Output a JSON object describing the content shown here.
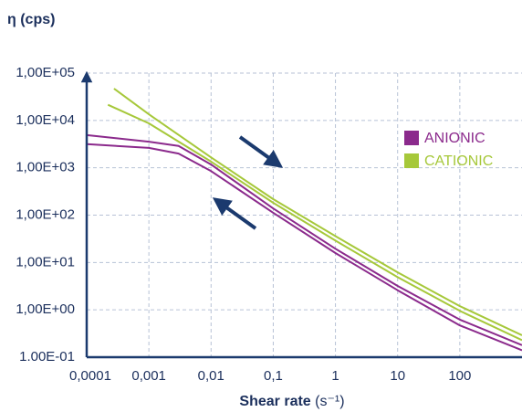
{
  "chart_data": {
    "type": "line",
    "ylabel": "η (cps)",
    "xlabel": "Shear rate",
    "xlabel_unit": "(s⁻¹)",
    "log_x": true,
    "log_y": true,
    "grid": true,
    "legend": "upper right",
    "xlim": [
      0.0001,
      1000
    ],
    "ylim": [
      0.1,
      100000
    ],
    "xticks": [
      {
        "value": 0.0001,
        "label": "0,0001"
      },
      {
        "value": 0.001,
        "label": "0,001"
      },
      {
        "value": 0.01,
        "label": "0,01"
      },
      {
        "value": 0.1,
        "label": "0,1"
      },
      1,
      10,
      100
    ],
    "yticks": [
      {
        "value": 0.1,
        "label": "1.00E-01"
      },
      {
        "value": 1,
        "label": "1,00E+00"
      },
      {
        "value": 10,
        "label": "1,00E+01"
      },
      {
        "value": 100,
        "label": "1,00E+02"
      },
      {
        "value": 1000,
        "label": "1,00E+03"
      },
      {
        "value": 10000,
        "label": "1,00E+04"
      },
      {
        "value": 100000,
        "label": "1,00E+05"
      }
    ],
    "series": [
      {
        "name": "ANIONIC",
        "color": "#8b2a8c",
        "lines": [
          {
            "x": [
              0.0001,
              0.001,
              0.003,
              0.01,
              0.1,
              1,
              10,
              100,
              1000
            ],
            "values": [
              4900,
              3550,
              2900,
              1170,
              138,
              19.5,
              3.2,
              0.62,
              0.18
            ]
          },
          {
            "x": [
              0.0001,
              0.001,
              0.003,
              0.01,
              0.1,
              1,
              10,
              100,
              1000
            ],
            "values": [
              3160,
              2630,
              2000,
              850,
              112,
              15.8,
              2.6,
              0.47,
              0.14
            ]
          }
        ]
      },
      {
        "name": "CATIONIC",
        "color": "#a6c83a",
        "lines": [
          {
            "x": [
              0.000275,
              0.001,
              0.01,
              0.1,
              1,
              10,
              100,
              1000
            ],
            "values": [
              47000,
              13500,
              1660,
              218,
              36,
              6.2,
              1.2,
              0.29
            ]
          },
          {
            "x": [
              0.00022,
              0.001,
              0.01,
              0.1,
              1,
              10,
              100,
              1000
            ],
            "values": [
              21400,
              8700,
              1350,
              182,
              29,
              4.9,
              0.95,
              0.23
            ]
          }
        ]
      }
    ]
  }
}
